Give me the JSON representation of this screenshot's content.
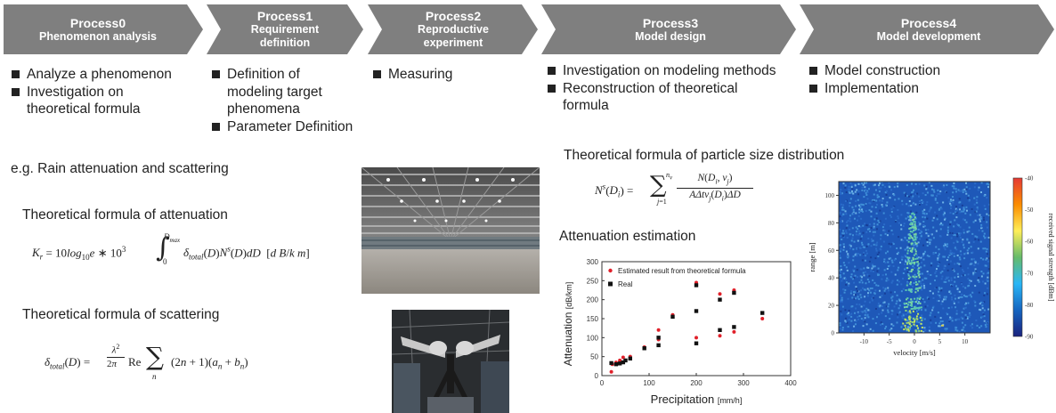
{
  "processes": [
    {
      "title": "Process0",
      "subtitle": "Phenomenon analysis",
      "items": [
        "Analyze a phenomenon",
        "Investigation on theoretical formula"
      ]
    },
    {
      "title": "Process1",
      "subtitle": "Requirement definition",
      "items": [
        "Definition of modeling target phenomena",
        "Parameter Definition"
      ]
    },
    {
      "title": "Process2",
      "subtitle": "Reproductive experiment",
      "items": [
        "Measuring"
      ]
    },
    {
      "title": "Process3",
      "subtitle": "Model design",
      "items": [
        "Investigation on modeling methods",
        "Reconstruction of theoretical formula"
      ]
    },
    {
      "title": "Process4",
      "subtitle": "Model development",
      "items": [
        "Model construction",
        "Implementation"
      ]
    }
  ],
  "example_label": "e.g. Rain attenuation and scattering",
  "formulas": {
    "attenuation_title": "Theoretical formula of attenuation",
    "scattering_title": "Theoretical formula of scattering",
    "psd_title": "Theoretical formula of particle size distribution",
    "estimation_title": "Attenuation estimation"
  },
  "chart_data": [
    {
      "type": "scatter",
      "xlabel": "Precipitation [mm/h]",
      "ylabel": "Attenuation [dB/km]",
      "xlim": [
        0,
        400
      ],
      "ylim": [
        0,
        300
      ],
      "xticks": [
        0,
        100,
        200,
        300,
        400
      ],
      "yticks": [
        0,
        50,
        100,
        150,
        200,
        250,
        300
      ],
      "legend_position": "top",
      "series": [
        {
          "name": "Estimated result from theoretical formula",
          "color": "#e0202a",
          "marker": "circle",
          "x": [
            20,
            22,
            30,
            38,
            45,
            50,
            60,
            90,
            120,
            120,
            150,
            200,
            200,
            200,
            250,
            250,
            280,
            280,
            340
          ],
          "y": [
            10,
            30,
            35,
            40,
            48,
            40,
            50,
            75,
            120,
            95,
            160,
            100,
            170,
            245,
            105,
            215,
            115,
            225,
            150
          ]
        },
        {
          "name": "Real",
          "color": "#111111",
          "marker": "square",
          "x": [
            20,
            30,
            38,
            45,
            50,
            60,
            90,
            120,
            120,
            150,
            200,
            200,
            200,
            250,
            250,
            280,
            280,
            340
          ],
          "y": [
            33,
            30,
            32,
            35,
            40,
            45,
            72,
            80,
            100,
            155,
            85,
            170,
            238,
            120,
            200,
            128,
            218,
            165
          ]
        }
      ]
    },
    {
      "type": "heatmap",
      "xlabel": "velocity [m/s]",
      "ylabel": "range [m]",
      "colorbar_label": "received signal strength [dBm]",
      "xlim": [
        -15,
        15
      ],
      "ylim": [
        0,
        110
      ],
      "xticks": [
        -10,
        -5,
        0,
        5,
        10
      ],
      "yticks": [
        0,
        20,
        40,
        60,
        80,
        100
      ],
      "colorbar_ticks": [
        -40,
        -50,
        -60,
        -70,
        -80,
        -90
      ],
      "colorbar_range": [
        -90,
        -40
      ],
      "colormap": [
        "#1a237e",
        "#1565c0",
        "#29b6f6",
        "#66bb6a",
        "#ffee58",
        "#fb8c00",
        "#e53935"
      ]
    }
  ],
  "colors": {
    "chevron": "#7f7f7f",
    "chevron_text": "#ffffff"
  }
}
